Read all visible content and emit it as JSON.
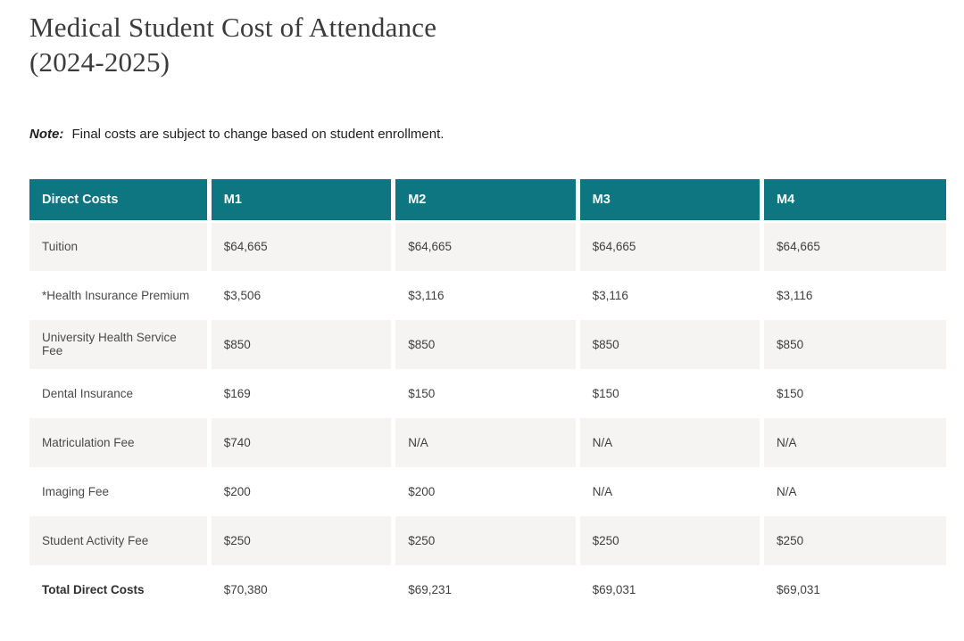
{
  "page": {
    "title_line1": "Medical Student Cost of Attendance",
    "title_line2": "(2024-2025)",
    "note_label": "Note:",
    "note_text": "Final costs are subject to change based on student enrollment."
  },
  "table": {
    "headers": [
      "Direct Costs",
      "M1",
      "M2",
      "M3",
      "M4"
    ],
    "rows": [
      {
        "label": "Tuition",
        "values": [
          "$64,665",
          "$64,665",
          "$64,665",
          "$64,665"
        ]
      },
      {
        "label": "*Health Insurance Premium",
        "values": [
          "$3,506",
          "$3,116",
          "$3,116",
          "$3,116"
        ]
      },
      {
        "label": "University Health Service Fee",
        "values": [
          "$850",
          "$850",
          "$850",
          "$850"
        ]
      },
      {
        "label": "Dental Insurance",
        "values": [
          "$169",
          "$150",
          "$150",
          "$150"
        ]
      },
      {
        "label": "Matriculation Fee",
        "values": [
          "$740",
          "N/A",
          "N/A",
          "N/A"
        ]
      },
      {
        "label": "Imaging Fee",
        "values": [
          "$200",
          "$200",
          "N/A",
          "N/A"
        ]
      },
      {
        "label": "Student Activity Fee",
        "values": [
          "$250",
          "$250",
          "$250",
          "$250"
        ]
      },
      {
        "label": "Total Direct Costs",
        "values": [
          "$70,380",
          "$69,231",
          "$69,031",
          "$69,031"
        ]
      }
    ],
    "colors": {
      "header_bg": "#0d7680",
      "header_text": "#ffffff",
      "stripe_bg": "#f5f4f2"
    }
  }
}
